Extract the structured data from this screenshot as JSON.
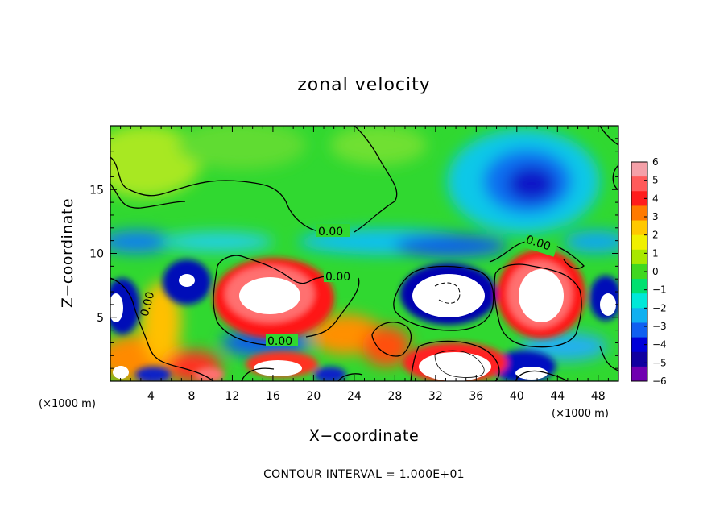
{
  "chart_data": {
    "type": "heatmap",
    "title": "zonal velocity",
    "xlabel": "X−coordinate",
    "ylabel": "Z−coordinate",
    "x_unit_left": "(×1000 m)",
    "x_unit_right": "(×1000 m)",
    "footer": "CONTOUR INTERVAL = 1.000E+01",
    "xlim": [
      0,
      50
    ],
    "ylim": [
      0,
      20
    ],
    "x_ticks": [
      4,
      8,
      12,
      16,
      20,
      24,
      28,
      32,
      36,
      40,
      44,
      48
    ],
    "y_ticks": [
      5,
      10,
      15
    ],
    "colorbar": {
      "ticks": [
        "6",
        "5",
        "4",
        "3",
        "2",
        "1",
        "0",
        "−1",
        "−2",
        "−3",
        "−4",
        "−5",
        "−6"
      ],
      "range": [
        -6,
        6
      ],
      "colors": [
        "#f4a0a8",
        "#ff5a5a",
        "#ff1c1c",
        "#ff7a00",
        "#ffc800",
        "#f0f000",
        "#a8e800",
        "#40d820",
        "#00e070",
        "#00e8d8",
        "#10b0f0",
        "#1060f0",
        "#0000d8",
        "#1000a0",
        "#7000b0"
      ]
    },
    "contour_labels": [
      {
        "text": "0.00"
      },
      {
        "text": "0.00"
      },
      {
        "text": "0.00"
      },
      {
        "text": "0.00"
      },
      {
        "text": "0.00"
      }
    ],
    "features": [
      {
        "region": "upper-left",
        "value": 1
      },
      {
        "region": "upper-center",
        "value": 0
      },
      {
        "region": "upper-right",
        "value": -4.5
      },
      {
        "region": "band-z10",
        "value": -3
      },
      {
        "region": "cell-x16-z6",
        "value": 6
      },
      {
        "region": "cell-x33-z7",
        "value": -6
      },
      {
        "region": "cell-x42-z7",
        "value": 6
      },
      {
        "region": "lower-band",
        "value": 6
      }
    ]
  }
}
